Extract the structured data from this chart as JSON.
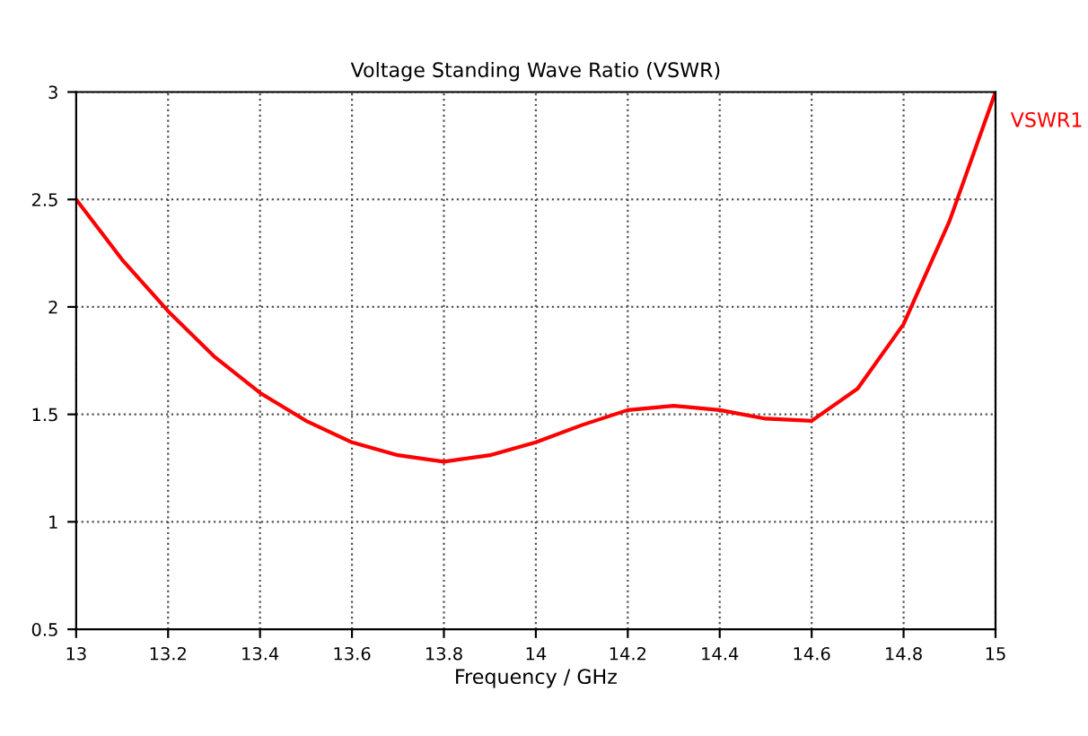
{
  "chart_data": {
    "type": "line",
    "title": "Voltage Standing Wave Ratio (VSWR)",
    "xlabel": "Frequency / GHz",
    "x": [
      13.0,
      13.1,
      13.2,
      13.3,
      13.4,
      13.5,
      13.6,
      13.7,
      13.8,
      13.9,
      14.0,
      14.1,
      14.2,
      14.3,
      14.4,
      14.5,
      14.6,
      14.7,
      14.8,
      14.9,
      15.0
    ],
    "series": [
      {
        "name": "VSWR1",
        "color": "#ff0000",
        "values": [
          2.5,
          2.22,
          1.98,
          1.77,
          1.6,
          1.47,
          1.37,
          1.31,
          1.28,
          1.31,
          1.37,
          1.45,
          1.52,
          1.54,
          1.52,
          1.48,
          1.47,
          1.62,
          1.92,
          2.4,
          3.0
        ]
      }
    ],
    "xlim": [
      13,
      15
    ],
    "ylim": [
      0.5,
      3
    ],
    "xticks": [
      13,
      13.2,
      13.4,
      13.6,
      13.8,
      14,
      14.2,
      14.4,
      14.6,
      14.8,
      15
    ],
    "yticks": [
      0.5,
      1,
      1.5,
      2,
      2.5,
      3
    ],
    "grid": true,
    "marker": "none",
    "line_style": "solid"
  }
}
